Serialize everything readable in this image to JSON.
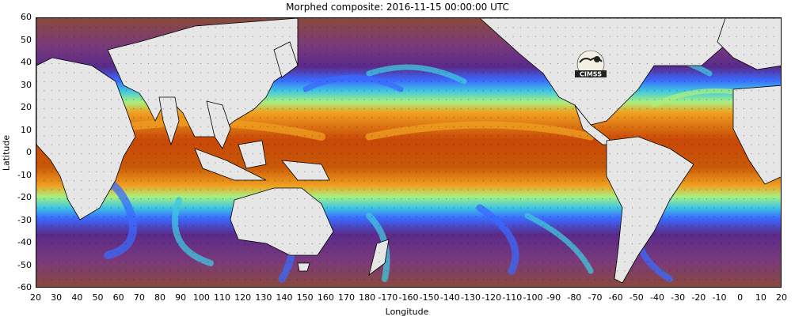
{
  "title": "Morphed composite: 2016-11-15 00:00:00 UTC",
  "axes": {
    "xlabel": "Longitude",
    "ylabel": "Latitude",
    "yticks": [
      "60",
      "50",
      "40",
      "30",
      "20",
      "10",
      "0",
      "-10",
      "-20",
      "-30",
      "-40",
      "-50",
      "-60"
    ],
    "xticks": [
      "20",
      "30",
      "40",
      "50",
      "60",
      "70",
      "80",
      "90",
      "100",
      "110",
      "120",
      "130",
      "140",
      "150",
      "160",
      "170",
      "180",
      "-170",
      "-160",
      "-150",
      "-140",
      "-130",
      "-120",
      "-110",
      "-100",
      "-90",
      "-80",
      "-70",
      "-60",
      "-50",
      "-40",
      "-30",
      "-20",
      "-10",
      "0",
      "10",
      "20"
    ]
  },
  "logo": {
    "text": "CIMSS"
  },
  "colors": {
    "land": "#e6e6e6",
    "dry": "#8a4a3a",
    "low": "#5a2a8a",
    "mid_low": "#3a6aff",
    "mid": "#40c8e0",
    "mid_high": "#a8f080",
    "high": "#f0a020",
    "very_high": "#c84808"
  }
}
